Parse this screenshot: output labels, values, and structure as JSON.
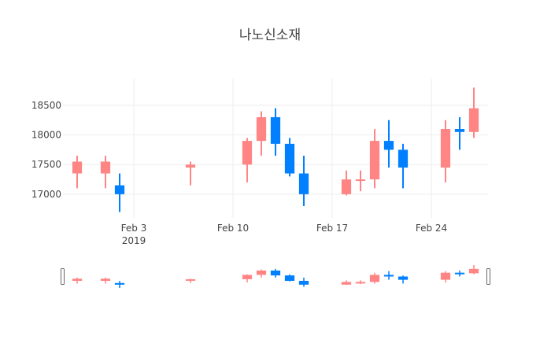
{
  "chart_data": {
    "type": "candlestick",
    "title": "나노신소재",
    "xlabel": "",
    "ylabel": "",
    "x_range": [
      "2019-01-29",
      "2019-02-28"
    ],
    "ylim": [
      16600,
      18950
    ],
    "y_ticks": [
      17000,
      17500,
      18000,
      18500
    ],
    "x_ticks": [
      {
        "date": "2019-02-03",
        "label": "Feb 3",
        "sublabel": "2019"
      },
      {
        "date": "2019-02-10",
        "label": "Feb 10",
        "sublabel": ""
      },
      {
        "date": "2019-02-17",
        "label": "Feb 17",
        "sublabel": ""
      },
      {
        "date": "2019-02-24",
        "label": "Feb 24",
        "sublabel": ""
      }
    ],
    "grid": true,
    "legend": "none",
    "rangeslider": true,
    "colors": {
      "increasing": "#ff8585",
      "decreasing": "#0080ff",
      "grid": "#eeeeee",
      "text": "#444444"
    },
    "candles": [
      {
        "date": "2019-01-30",
        "open": 17350,
        "high": 17650,
        "low": 17100,
        "close": 17550
      },
      {
        "date": "2019-02-01",
        "open": 17350,
        "high": 17650,
        "low": 17100,
        "close": 17550
      },
      {
        "date": "2019-02-02",
        "open": 17150,
        "high": 17350,
        "low": 16700,
        "close": 17000
      },
      {
        "date": "2019-02-07",
        "open": 17450,
        "high": 17550,
        "low": 17150,
        "close": 17500
      },
      {
        "date": "2019-02-11",
        "open": 17500,
        "high": 17950,
        "low": 17200,
        "close": 17900
      },
      {
        "date": "2019-02-12",
        "open": 17900,
        "high": 18400,
        "low": 17650,
        "close": 18300
      },
      {
        "date": "2019-02-13",
        "open": 18300,
        "high": 18450,
        "low": 17650,
        "close": 17850
      },
      {
        "date": "2019-02-14",
        "open": 17850,
        "high": 17950,
        "low": 17300,
        "close": 17350
      },
      {
        "date": "2019-02-15",
        "open": 17350,
        "high": 17650,
        "low": 16800,
        "close": 17000
      },
      {
        "date": "2019-02-18",
        "open": 17000,
        "high": 17400,
        "low": 16980,
        "close": 17250
      },
      {
        "date": "2019-02-19",
        "open": 17250,
        "high": 17400,
        "low": 17050,
        "close": 17250
      },
      {
        "date": "2019-02-20",
        "open": 17250,
        "high": 18100,
        "low": 17100,
        "close": 17900
      },
      {
        "date": "2019-02-21",
        "open": 17900,
        "high": 18250,
        "low": 17450,
        "close": 17750
      },
      {
        "date": "2019-02-22",
        "open": 17750,
        "high": 17850,
        "low": 17100,
        "close": 17450
      },
      {
        "date": "2019-02-25",
        "open": 17450,
        "high": 18250,
        "low": 17200,
        "close": 18100
      },
      {
        "date": "2019-02-26",
        "open": 18100,
        "high": 18300,
        "low": 17750,
        "close": 18050
      },
      {
        "date": "2019-02-27",
        "open": 18050,
        "high": 18800,
        "low": 17950,
        "close": 18450
      }
    ]
  }
}
